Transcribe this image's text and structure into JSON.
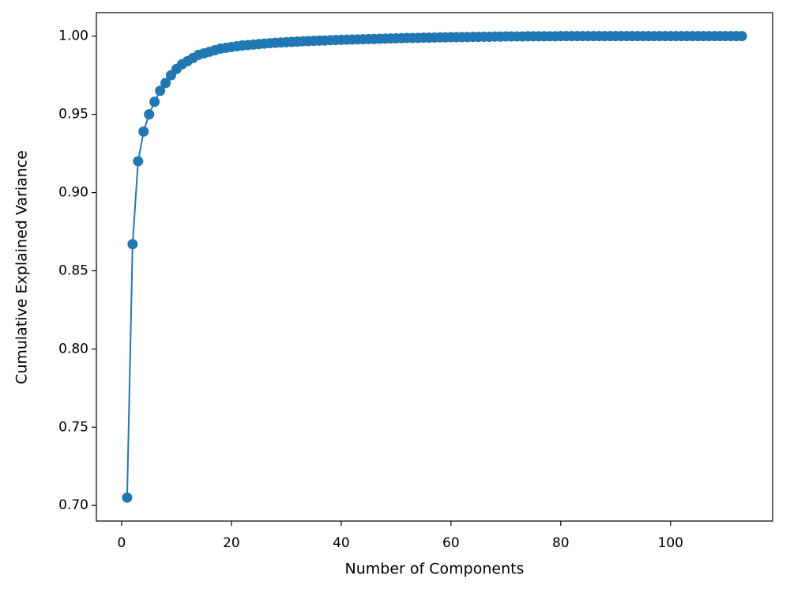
{
  "chart_data": {
    "type": "line",
    "x_label": "Number of Components",
    "y_label": "Cumulative Explained Variance",
    "x": [
      1,
      2,
      3,
      4,
      5,
      6,
      7,
      8,
      9,
      10,
      11,
      12,
      13,
      14,
      15,
      16,
      17,
      18,
      19,
      20,
      21,
      22,
      23,
      24,
      25,
      26,
      27,
      28,
      29,
      30,
      31,
      32,
      33,
      34,
      35,
      36,
      37,
      38,
      39,
      40,
      41,
      42,
      43,
      44,
      45,
      46,
      47,
      48,
      49,
      50,
      51,
      52,
      53,
      54,
      55,
      56,
      57,
      58,
      59,
      60,
      61,
      62,
      63,
      64,
      65,
      66,
      67,
      68,
      69,
      70,
      71,
      72,
      73,
      74,
      75,
      76,
      77,
      78,
      79,
      80,
      81,
      82,
      83,
      84,
      85,
      86,
      87,
      88,
      89,
      90,
      91,
      92,
      93,
      94,
      95,
      96,
      97,
      98,
      99,
      100,
      101,
      102,
      103,
      104,
      105,
      106,
      107,
      108,
      109,
      110,
      111,
      112,
      113
    ],
    "series": [
      {
        "color": "#1f77b4",
        "values": [
          0.705,
          0.867,
          0.92,
          0.939,
          0.95,
          0.958,
          0.965,
          0.97,
          0.975,
          0.979,
          0.982,
          0.984,
          0.986,
          0.988,
          0.989,
          0.99,
          0.991,
          0.992,
          0.9925,
          0.993,
          0.9935,
          0.994,
          0.9943,
          0.9946,
          0.9949,
          0.9952,
          0.9955,
          0.9957,
          0.9959,
          0.9961,
          0.9963,
          0.9965,
          0.9967,
          0.9968,
          0.997,
          0.9971,
          0.9972,
          0.9974,
          0.9975,
          0.9976,
          0.9977,
          0.9978,
          0.9979,
          0.998,
          0.9981,
          0.9982,
          0.9983,
          0.9984,
          0.9985,
          0.9986,
          0.9987,
          0.9988,
          0.9988,
          0.9989,
          0.999,
          0.999,
          0.9991,
          0.9992,
          0.9992,
          0.9993,
          0.9993,
          0.9994,
          0.9994,
          0.9995,
          0.9995,
          0.9996,
          0.9996,
          0.9997,
          0.9997,
          0.9998,
          0.9998,
          0.9998,
          0.9998,
          0.9999,
          0.9999,
          0.9999,
          0.9999,
          0.9999,
          0.9999,
          1.0,
          1.0,
          1.0,
          1.0,
          1.0,
          1.0,
          1.0,
          1.0,
          1.0,
          1.0,
          1.0,
          1.0,
          1.0,
          1.0,
          1.0,
          1.0,
          1.0,
          1.0,
          1.0,
          1.0,
          1.0,
          1.0,
          1.0,
          1.0,
          1.0,
          1.0,
          1.0,
          1.0,
          1.0,
          1.0,
          1.0,
          1.0,
          1.0,
          1.0
        ]
      }
    ],
    "xlim": [
      -4.6,
      118.6
    ],
    "ylim": [
      0.69,
      1.015
    ],
    "xticks": [
      0,
      20,
      40,
      60,
      80,
      100
    ],
    "yticks": [
      {
        "value": 0.7,
        "label": "0.70"
      },
      0.75,
      {
        "value": 0.8,
        "label": "0.80"
      },
      0.85,
      {
        "value": 0.9,
        "label": "0.90"
      },
      0.95,
      {
        "value": 1.0,
        "label": "1.00"
      }
    ],
    "markers": true
  }
}
